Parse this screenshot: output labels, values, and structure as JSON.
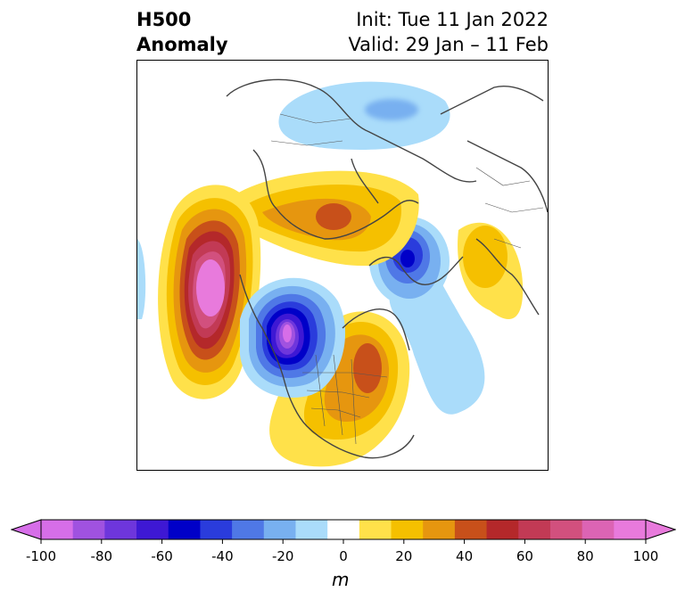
{
  "header": {
    "title_line1": "H500",
    "title_line2": "Anomaly",
    "init": "Init: Tue 11 Jan 2022",
    "valid": "Valid: 29 Jan – 11 Feb"
  },
  "colorbar": {
    "unit": "m",
    "min": -100,
    "max": 100,
    "levels": [
      -100,
      -90,
      -80,
      -70,
      -60,
      -50,
      -40,
      -30,
      -20,
      -10,
      10,
      20,
      30,
      40,
      50,
      60,
      70,
      80,
      90,
      100
    ],
    "tick_labels": [
      "-100",
      "-80",
      "-60",
      "-40",
      "-20",
      "0",
      "20",
      "40",
      "60",
      "80",
      "100"
    ],
    "tick_values": [
      -100,
      -80,
      -60,
      -40,
      -20,
      0,
      20,
      40,
      60,
      80,
      100
    ],
    "colors": [
      "#d66ee8",
      "#a052e0",
      "#6e36dc",
      "#3e18d4",
      "#0000c8",
      "#2a3cdc",
      "#4f78e6",
      "#78b0f0",
      "#aadcfa",
      "#ffffff",
      "#ffe14a",
      "#f5c000",
      "#e6960f",
      "#c8501a",
      "#b4282a",
      "#c23a55",
      "#d2507e",
      "#dc64b4",
      "#e87adc"
    ]
  },
  "map": {
    "features": [
      {
        "name": "positive anomaly over northeast Pacific / Gulf of Alaska",
        "sign": "positive",
        "peak_m": 100
      },
      {
        "name": "negative anomaly over northwest North America",
        "sign": "negative",
        "peak_m": -100
      },
      {
        "name": "positive anomaly over eastern North America",
        "sign": "positive",
        "peak_m": 60
      },
      {
        "name": "positive anomaly over Siberia",
        "sign": "positive",
        "peak_m": 50
      },
      {
        "name": "negative anomaly over Scandinavia / northern Europe",
        "sign": "negative",
        "peak_m": -60
      },
      {
        "name": "positive anomaly over southern Europe",
        "sign": "positive",
        "peak_m": 20
      },
      {
        "name": "negative anomaly over Arctic / East Asia",
        "sign": "negative",
        "peak_m": -40
      },
      {
        "name": "negative anomaly over North Atlantic",
        "sign": "negative",
        "peak_m": -20
      }
    ]
  }
}
